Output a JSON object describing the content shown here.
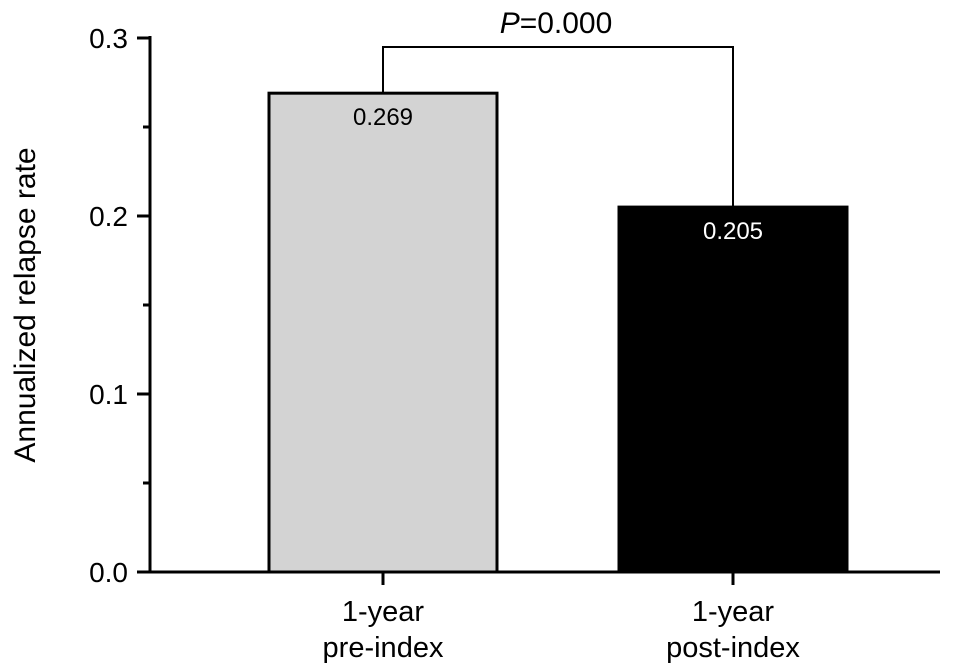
{
  "chart_data": {
    "type": "bar",
    "title": "",
    "xlabel": "",
    "ylabel": "Annualized relapse rate",
    "ylim": [
      0,
      0.3
    ],
    "yticks": [
      {
        "value": 0.0,
        "label": "0.0"
      },
      {
        "value": 0.1,
        "label": "0.1"
      },
      {
        "value": 0.2,
        "label": "0.2"
      },
      {
        "value": 0.3,
        "label": "0.3"
      }
    ],
    "minor_tick_step": 0.05,
    "grid": false,
    "categories": [
      {
        "lines": [
          "1-year",
          "pre-index"
        ]
      },
      {
        "lines": [
          "1-year",
          "post-index"
        ]
      }
    ],
    "values": [
      0.269,
      0.205
    ],
    "data_labels": [
      "0.269",
      "0.205"
    ],
    "bar_colors": [
      "#d3d3d3",
      "#000000"
    ],
    "data_label_colors": [
      "#000000",
      "#ffffff"
    ],
    "annotation": {
      "p_symbol": "P",
      "p_value": "=0.000"
    }
  }
}
